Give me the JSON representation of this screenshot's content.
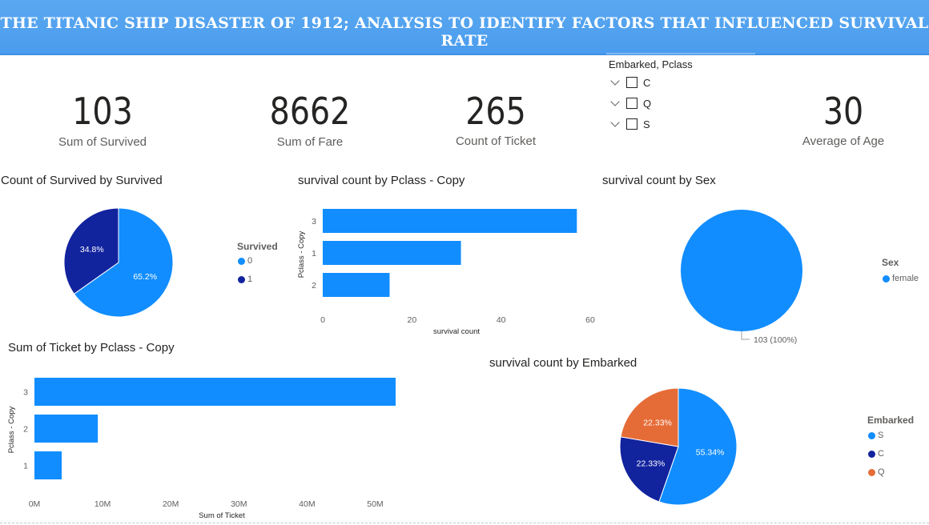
{
  "banner": {
    "title": "THE TITANIC SHIP DISASTER OF 1912; ANALYSIS TO IDENTIFY FACTORS THAT INFLUENCED SURVIVAL RATE"
  },
  "kpis": [
    {
      "value": "103",
      "label": "Sum of Survived"
    },
    {
      "value": "8662",
      "label": "Sum of Fare"
    },
    {
      "value": "265",
      "label": "Count of Ticket"
    },
    {
      "value": "30",
      "label": "Average of Age"
    }
  ],
  "slicer": {
    "title": "Embarked, Pclass",
    "items": [
      "C",
      "Q",
      "S"
    ]
  },
  "colors": {
    "blue": "#118dff",
    "navy": "#12239e",
    "orange": "#e66c37",
    "banner": "#4a9cee"
  },
  "chart_data": [
    {
      "id": "survived_pie",
      "type": "pie",
      "title": "Count of Survived by Survived",
      "legend_title": "Survived",
      "categories": [
        "0",
        "1"
      ],
      "values": [
        65.2,
        34.8
      ],
      "labels": [
        "65.2%",
        "34.8%"
      ],
      "colors": [
        "#118dff",
        "#12239e"
      ]
    },
    {
      "id": "pclass_bar",
      "type": "bar",
      "orientation": "horizontal",
      "title": "survival count by Pclass - Copy",
      "xlabel": "survival count",
      "ylabel": "Pclass - Copy",
      "categories": [
        "3",
        "1",
        "2"
      ],
      "values": [
        57,
        31,
        15
      ],
      "xlim": [
        0,
        60
      ],
      "xticks": [
        "0",
        "20",
        "40",
        "60"
      ]
    },
    {
      "id": "sex_pie",
      "type": "pie",
      "title": "survival count by Sex",
      "legend_title": "Sex",
      "categories": [
        "female"
      ],
      "values": [
        103
      ],
      "labels": [
        "103 (100%)"
      ],
      "colors": [
        "#118dff"
      ]
    },
    {
      "id": "ticket_bar",
      "type": "bar",
      "orientation": "horizontal",
      "title": "Sum of Ticket by Pclass - Copy",
      "xlabel": "Sum of Ticket",
      "ylabel": "Pclass - Copy",
      "categories": [
        "3",
        "2",
        "1"
      ],
      "values": [
        53000000,
        9300000,
        4000000
      ],
      "xlim": [
        0,
        53000000
      ],
      "xticks": [
        "0M",
        "10M",
        "20M",
        "30M",
        "40M",
        "50M"
      ]
    },
    {
      "id": "embarked_pie",
      "type": "pie",
      "title": "survival count by Embarked",
      "legend_title": "Embarked",
      "categories": [
        "S",
        "C",
        "Q"
      ],
      "values": [
        55.34,
        22.33,
        22.33
      ],
      "labels": [
        "55.34%",
        "22.33%",
        "22.33%"
      ],
      "colors": [
        "#118dff",
        "#12239e",
        "#e66c37"
      ]
    }
  ]
}
